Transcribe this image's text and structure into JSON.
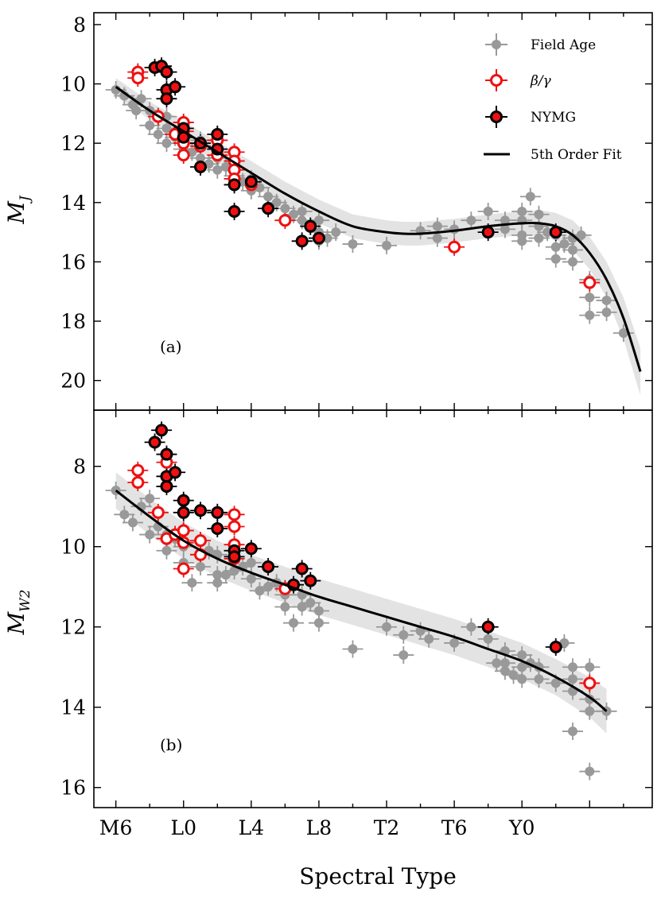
{
  "chart_data": [
    {
      "type": "scatter",
      "panel_label": "(a)",
      "ylabel": "M_J",
      "ylabel_main": "M",
      "ylabel_sub": "J",
      "xlabel": "",
      "ylim": [
        21,
        7.6
      ],
      "yticks": [
        8,
        10,
        12,
        14,
        16,
        18,
        20
      ],
      "fit": {
        "name": "5th Order Fit",
        "points": [
          [
            0,
            10.1
          ],
          [
            2,
            10.9
          ],
          [
            4,
            11.6
          ],
          [
            6,
            12.3
          ],
          [
            8,
            13.0
          ],
          [
            10,
            13.7
          ],
          [
            12,
            14.3
          ],
          [
            14,
            14.8
          ],
          [
            16,
            15.0
          ],
          [
            17,
            15.05
          ],
          [
            18,
            15.05
          ],
          [
            20,
            14.95
          ],
          [
            22,
            14.8
          ],
          [
            24,
            14.7
          ],
          [
            25,
            14.7
          ],
          [
            26,
            14.8
          ],
          [
            27,
            15.1
          ],
          [
            28,
            15.7
          ],
          [
            29,
            16.6
          ],
          [
            30,
            17.9
          ],
          [
            31,
            19.7
          ]
        ],
        "band_halfwidth": [
          0.3,
          0.3,
          0.35,
          0.35,
          0.4,
          0.4,
          0.4,
          0.4,
          0.4,
          0.4,
          0.4,
          0.4,
          0.4,
          0.4,
          0.45,
          0.45,
          0.5,
          0.55,
          0.6,
          0.7,
          0.8
        ]
      },
      "series": [
        {
          "name": "Field Age",
          "points": [
            [
              0,
              10.2
            ],
            [
              0.5,
              10.4
            ],
            [
              1,
              10.7
            ],
            [
              1.2,
              10.9
            ],
            [
              1.5,
              10.5
            ],
            [
              2,
              10.9
            ],
            [
              2,
              11.4
            ],
            [
              2.5,
              11.7
            ],
            [
              3,
              11.1
            ],
            [
              3,
              11.5
            ],
            [
              3,
              12.0
            ],
            [
              3.5,
              11.8
            ],
            [
              4,
              11.3
            ],
            [
              4,
              11.8
            ],
            [
              4,
              12.2
            ],
            [
              4.5,
              12.3
            ],
            [
              5,
              11.9
            ],
            [
              5,
              12.5
            ],
            [
              5.5,
              12.7
            ],
            [
              6,
              12.5
            ],
            [
              6,
              12.9
            ],
            [
              6.5,
              12.8
            ],
            [
              7,
              12.6
            ],
            [
              7,
              13.1
            ],
            [
              7.5,
              13.3
            ],
            [
              8,
              13.2
            ],
            [
              8,
              13.6
            ],
            [
              8.5,
              13.5
            ],
            [
              9,
              13.8
            ],
            [
              9.5,
              14.0
            ],
            [
              10,
              14.2
            ],
            [
              10.5,
              14.4
            ],
            [
              11,
              14.3
            ],
            [
              11,
              14.6
            ],
            [
              11.5,
              14.8
            ],
            [
              12,
              14.6
            ],
            [
              12,
              15.0
            ],
            [
              12,
              15.3
            ],
            [
              12.5,
              15.2
            ],
            [
              13,
              15.0
            ],
            [
              14,
              15.4
            ],
            [
              16,
              15.45
            ],
            [
              18,
              14.95
            ],
            [
              19,
              14.8
            ],
            [
              19,
              15.2
            ],
            [
              20,
              14.9
            ],
            [
              21,
              14.6
            ],
            [
              22,
              14.3
            ],
            [
              23,
              14.6
            ],
            [
              23,
              14.9
            ],
            [
              24,
              14.3
            ],
            [
              24,
              14.6
            ],
            [
              24,
              15.1
            ],
            [
              24,
              15.3
            ],
            [
              24.5,
              13.8
            ],
            [
              25,
              14.4
            ],
            [
              25,
              14.8
            ],
            [
              25,
              15.2
            ],
            [
              25.5,
              15.0
            ],
            [
              26,
              15.1
            ],
            [
              26,
              15.5
            ],
            [
              26,
              15.9
            ],
            [
              26.5,
              15.4
            ],
            [
              27,
              15.2
            ],
            [
              27,
              15.6
            ],
            [
              27,
              16.0
            ],
            [
              27.5,
              15.1
            ],
            [
              28,
              16.6
            ],
            [
              28,
              17.2
            ],
            [
              28,
              17.8
            ],
            [
              29,
              17.3
            ],
            [
              29,
              17.7
            ],
            [
              30,
              18.4
            ]
          ]
        },
        {
          "name": "β/γ",
          "points": [
            [
              1.3,
              9.6
            ],
            [
              1.3,
              9.8
            ],
            [
              2.5,
              11.1
            ],
            [
              3.5,
              11.7
            ],
            [
              4,
              11.3
            ],
            [
              4,
              11.6
            ],
            [
              4,
              11.8
            ],
            [
              4,
              12.0
            ],
            [
              4,
              12.4
            ],
            [
              5,
              12.1
            ],
            [
              6,
              11.9
            ],
            [
              6,
              12.4
            ],
            [
              7,
              12.3
            ],
            [
              7,
              12.6
            ],
            [
              7,
              12.9
            ],
            [
              7,
              13.2
            ],
            [
              8,
              13.4
            ],
            [
              10,
              14.6
            ],
            [
              20,
              15.5
            ],
            [
              28,
              16.7
            ]
          ]
        },
        {
          "name": "NYMG",
          "points": [
            [
              2.3,
              9.45
            ],
            [
              2.7,
              9.4
            ],
            [
              3,
              9.6
            ],
            [
              3,
              10.2
            ],
            [
              3,
              10.5
            ],
            [
              3.5,
              10.1
            ],
            [
              4,
              11.5
            ],
            [
              4,
              11.8
            ],
            [
              5,
              12.0
            ],
            [
              5,
              12.8
            ],
            [
              6,
              11.7
            ],
            [
              6,
              12.2
            ],
            [
              7,
              13.4
            ],
            [
              7,
              14.3
            ],
            [
              8,
              13.3
            ],
            [
              9,
              14.2
            ],
            [
              11,
              15.3
            ],
            [
              11.5,
              14.8
            ],
            [
              12,
              15.2
            ],
            [
              22,
              15.0
            ],
            [
              26,
              15.0
            ]
          ]
        }
      ]
    },
    {
      "type": "scatter",
      "panel_label": "(b)",
      "ylabel": "M_W2",
      "ylabel_main": "M",
      "ylabel_sub": "W2",
      "xlabel": "Spectral Type",
      "ylim": [
        16.5,
        6.6
      ],
      "yticks": [
        8,
        10,
        12,
        14,
        16
      ],
      "xticks": [
        "M6",
        "L0",
        "L4",
        "L8",
        "T2",
        "T6",
        "Y0"
      ],
      "xtick_values": [
        0,
        4,
        8,
        12,
        16,
        20,
        24
      ],
      "fit": {
        "name": "5th Order Fit",
        "points": [
          [
            0,
            8.6
          ],
          [
            2,
            9.25
          ],
          [
            4,
            9.85
          ],
          [
            6,
            10.3
          ],
          [
            8,
            10.65
          ],
          [
            10,
            10.95
          ],
          [
            12,
            11.25
          ],
          [
            14,
            11.5
          ],
          [
            16,
            11.75
          ],
          [
            18,
            12.0
          ],
          [
            20,
            12.25
          ],
          [
            22,
            12.55
          ],
          [
            24,
            12.85
          ],
          [
            26,
            13.25
          ],
          [
            28,
            13.75
          ],
          [
            29,
            14.1
          ]
        ],
        "band_halfwidth": [
          0.45,
          0.45,
          0.45,
          0.45,
          0.45,
          0.45,
          0.45,
          0.45,
          0.45,
          0.45,
          0.45,
          0.45,
          0.45,
          0.45,
          0.5,
          0.55
        ]
      },
      "series": [
        {
          "name": "Field Age",
          "points": [
            [
              0,
              8.6
            ],
            [
              0.5,
              9.2
            ],
            [
              1,
              9.4
            ],
            [
              1.5,
              9.0
            ],
            [
              2,
              8.8
            ],
            [
              2,
              9.7
            ],
            [
              2.5,
              9.5
            ],
            [
              3,
              9.7
            ],
            [
              3,
              10.1
            ],
            [
              3.5,
              9.8
            ],
            [
              4,
              9.6
            ],
            [
              4,
              10.0
            ],
            [
              4,
              10.4
            ],
            [
              4.5,
              10.9
            ],
            [
              5,
              10.2
            ],
            [
              5,
              10.5
            ],
            [
              5.5,
              10.1
            ],
            [
              6,
              10.2
            ],
            [
              6,
              10.7
            ],
            [
              6,
              10.9
            ],
            [
              6.5,
              10.7
            ],
            [
              7,
              10.3
            ],
            [
              7,
              10.6
            ],
            [
              7.5,
              10.5
            ],
            [
              8,
              10.4
            ],
            [
              8,
              10.8
            ],
            [
              8.5,
              11.1
            ],
            [
              9,
              11.0
            ],
            [
              9.5,
              10.9
            ],
            [
              10,
              11.2
            ],
            [
              10,
              11.5
            ],
            [
              10.5,
              11.9
            ],
            [
              11,
              11.2
            ],
            [
              11,
              11.5
            ],
            [
              11.5,
              11.4
            ],
            [
              12,
              11.6
            ],
            [
              12,
              11.9
            ],
            [
              14,
              12.55
            ],
            [
              16,
              12.0
            ],
            [
              17,
              12.2
            ],
            [
              17,
              12.7
            ],
            [
              18,
              12.1
            ],
            [
              18.5,
              12.3
            ],
            [
              20,
              12.4
            ],
            [
              21,
              12.0
            ],
            [
              22,
              12.3
            ],
            [
              22.5,
              12.9
            ],
            [
              23,
              12.6
            ],
            [
              23,
              12.9
            ],
            [
              23,
              13.1
            ],
            [
              23.5,
              13.2
            ],
            [
              24,
              12.7
            ],
            [
              24,
              13.0
            ],
            [
              24,
              13.3
            ],
            [
              24.5,
              12.9
            ],
            [
              25,
              13.0
            ],
            [
              25,
              13.3
            ],
            [
              26,
              13.4
            ],
            [
              26.5,
              12.4
            ],
            [
              27,
              13.0
            ],
            [
              27,
              13.3
            ],
            [
              27,
              13.6
            ],
            [
              28,
              13.0
            ],
            [
              28,
              13.8
            ],
            [
              28,
              14.1
            ],
            [
              29,
              14.1
            ],
            [
              27,
              14.6
            ],
            [
              28,
              15.6
            ]
          ]
        },
        {
          "name": "β/γ",
          "points": [
            [
              1.3,
              8.1
            ],
            [
              1.3,
              8.4
            ],
            [
              2.5,
              9.15
            ],
            [
              3,
              7.9
            ],
            [
              3,
              9.8
            ],
            [
              3.5,
              9.7
            ],
            [
              4,
              9.6
            ],
            [
              4,
              9.9
            ],
            [
              4,
              10.55
            ],
            [
              5,
              9.85
            ],
            [
              5,
              10.2
            ],
            [
              7,
              9.2
            ],
            [
              7,
              9.5
            ],
            [
              7,
              9.95
            ],
            [
              7,
              10.3
            ],
            [
              10,
              11.05
            ],
            [
              28,
              13.4
            ]
          ]
        },
        {
          "name": "NYMG",
          "points": [
            [
              2.3,
              7.4
            ],
            [
              2.7,
              7.1
            ],
            [
              3,
              7.7
            ],
            [
              3,
              8.25
            ],
            [
              3,
              8.5
            ],
            [
              3.5,
              8.15
            ],
            [
              4,
              8.85
            ],
            [
              4,
              9.15
            ],
            [
              5,
              9.1
            ],
            [
              6,
              9.15
            ],
            [
              6,
              9.55
            ],
            [
              7,
              10.1
            ],
            [
              7,
              10.25
            ],
            [
              8,
              10.05
            ],
            [
              9,
              10.5
            ],
            [
              10.5,
              10.95
            ],
            [
              11,
              10.55
            ],
            [
              11.5,
              10.85
            ],
            [
              22,
              12.0
            ],
            [
              26,
              12.5
            ]
          ]
        }
      ]
    }
  ],
  "legend": {
    "placement": "top-right",
    "items": [
      {
        "label": "Field Age"
      },
      {
        "label": "β/γ"
      },
      {
        "label": "NYMG"
      },
      {
        "label": "5th Order Fit"
      }
    ]
  },
  "colors": {
    "field": "#999999",
    "beta_gamma": "#ee1111",
    "nymg_fill": "#ee1111",
    "nymg_edge": "#000000",
    "fit": "#000000",
    "band": "#e3e3e3"
  }
}
